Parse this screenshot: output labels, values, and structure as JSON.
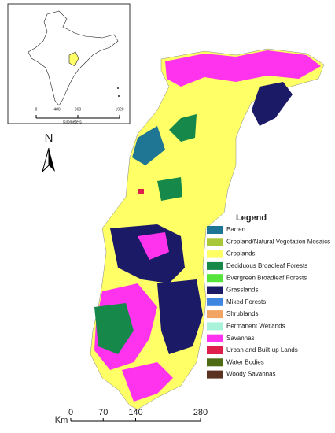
{
  "map": {
    "north_label": "N",
    "inset": {
      "scale_bar": {
        "unit": "Kilometers",
        "ticks": [
          0,
          480,
          960,
          1920
        ]
      }
    },
    "scale_bar": {
      "unit": "Km",
      "ticks": [
        0,
        70,
        140,
        280
      ]
    },
    "legend": {
      "title": "Legend",
      "items": [
        {
          "label": "Barren",
          "color": "#1f7594"
        },
        {
          "label": "Cropland/Natural Vegetation Mosaics",
          "color": "#a8c83a"
        },
        {
          "label": "Croplands",
          "color": "#ffff66"
        },
        {
          "label": "Deciduous Broadleaf Forests",
          "color": "#15884a"
        },
        {
          "label": "Evergreen Broadleaf Forests",
          "color": "#55e43c"
        },
        {
          "label": "Grasslands",
          "color": "#1b1a66"
        },
        {
          "label": "Mixed Forests",
          "color": "#3f86e0"
        },
        {
          "label": "Shrublands",
          "color": "#f2a463"
        },
        {
          "label": "Permanent Wetlands",
          "color": "#a9f2da"
        },
        {
          "label": "Savannas",
          "color": "#ff33ee"
        },
        {
          "label": "Urban and Built-up Lands",
          "color": "#e0204c"
        },
        {
          "label": "Water Bodies",
          "color": "#4d6b12"
        },
        {
          "label": "Woody Savannas",
          "color": "#5b3120"
        }
      ]
    }
  }
}
